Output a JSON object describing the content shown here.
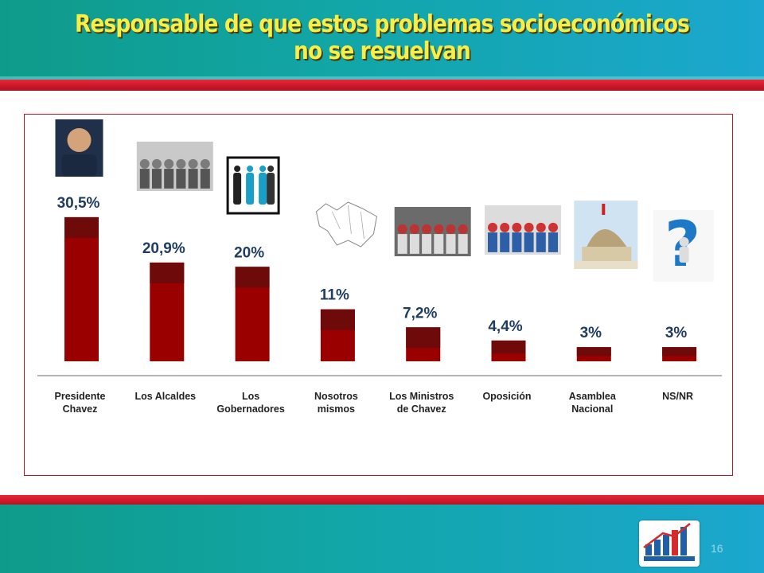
{
  "slide": {
    "title_line1": "Responsable de que estos problemas socioeconómicos",
    "title_line2": "no se resuelvan",
    "page_number": "16"
  },
  "colors": {
    "band": "#12a6a8",
    "stripe": "#c0172a",
    "title": "#f4ef4a",
    "bar": "#9b0000",
    "bar_top": "#6e0a0a",
    "value_label": "#1f3d63"
  },
  "chart_data": {
    "type": "bar",
    "categories": [
      [
        "Presidente",
        "Chavez"
      ],
      [
        "Los Alcaldes"
      ],
      [
        "Los",
        "Gobernadores"
      ],
      [
        "Nosotros",
        "mismos"
      ],
      [
        "Los Ministros",
        "de Chavez"
      ],
      [
        "Oposición"
      ],
      [
        "Asamblea",
        "Nacional"
      ],
      [
        "NS/NR"
      ]
    ],
    "values": [
      30.5,
      20.9,
      20,
      11,
      7.2,
      4.4,
      3,
      3
    ],
    "data_labels": [
      "30,5%",
      "20,9%",
      "20%",
      "11%",
      "7,2%",
      "4,4%",
      "3%",
      "3%"
    ],
    "category_images": [
      "portrait-photo",
      "meeting-photo",
      "people-silhouettes-icon",
      "venezuela-map-outline",
      "cabinet-meeting-photo",
      "politicians-raised-hands-photo",
      "capitol-dome-photo",
      "question-mark-figure-icon"
    ],
    "ylim": [
      0,
      32
    ],
    "grid": false,
    "legend": "none",
    "title": "",
    "xlabel": "",
    "ylabel": ""
  }
}
